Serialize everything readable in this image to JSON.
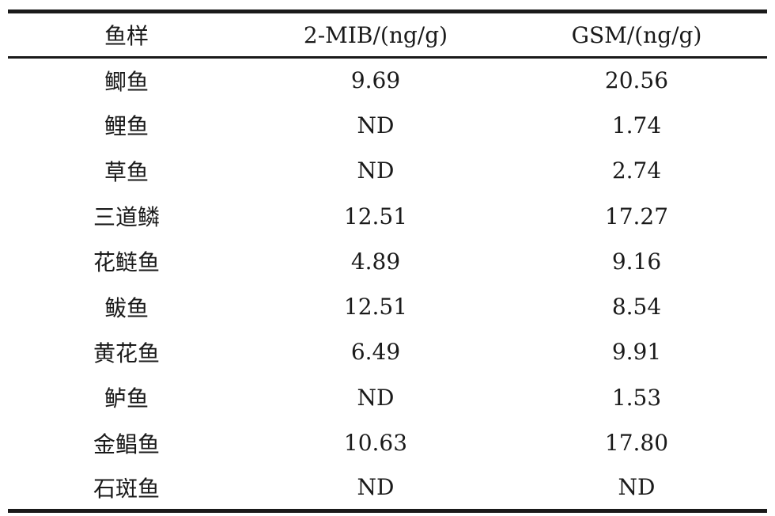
{
  "table": {
    "headers": [
      "鱼样",
      "2-MIB/(ng/g)",
      "GSM/(ng/g)"
    ],
    "rows": [
      {
        "fish": "鲫鱼",
        "mib": "9.69",
        "gsm": "20.56"
      },
      {
        "fish": "鲤鱼",
        "mib": "ND",
        "gsm": "1.74"
      },
      {
        "fish": "草鱼",
        "mib": "ND",
        "gsm": "2.74"
      },
      {
        "fish": "三道鳞",
        "mib": "12.51",
        "gsm": "17.27"
      },
      {
        "fish": "花鲢鱼",
        "mib": "4.89",
        "gsm": "9.16"
      },
      {
        "fish": "鲅鱼",
        "mib": "12.51",
        "gsm": "8.54"
      },
      {
        "fish": "黄花鱼",
        "mib": "6.49",
        "gsm": "9.91"
      },
      {
        "fish": "鲈鱼",
        "mib": "ND",
        "gsm": "1.53"
      },
      {
        "fish": "金鲳鱼",
        "mib": "10.63",
        "gsm": "17.80"
      },
      {
        "fish": "石斑鱼",
        "mib": "ND",
        "gsm": "ND"
      }
    ]
  }
}
